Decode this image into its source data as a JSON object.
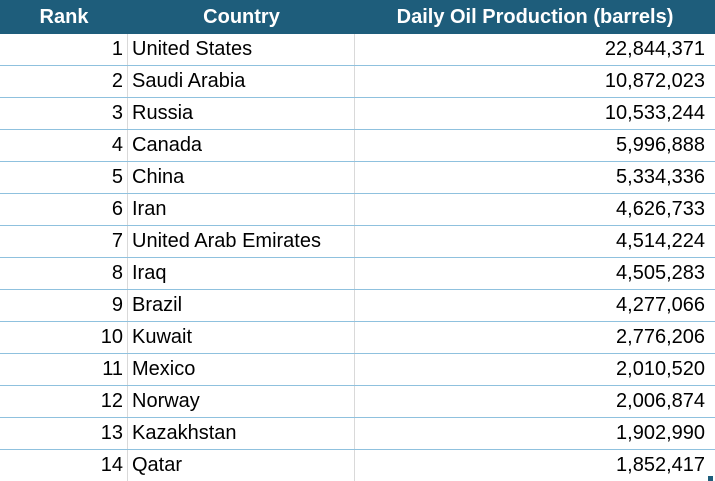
{
  "table": {
    "header": [
      "Rank",
      "Country",
      "Daily Oil Production (barrels)"
    ],
    "rows": [
      [
        1,
        "United States",
        "22,844,371"
      ],
      [
        2,
        "Saudi Arabia",
        "10,872,023"
      ],
      [
        3,
        "Russia",
        "10,533,244"
      ],
      [
        4,
        "Canada",
        "5,996,888"
      ],
      [
        5,
        "China",
        "5,334,336"
      ],
      [
        6,
        "Iran",
        "4,626,733"
      ],
      [
        7,
        "United Arab Emirates",
        "4,514,224"
      ],
      [
        8,
        "Iraq",
        "4,505,283"
      ],
      [
        9,
        "Brazil",
        "4,277,066"
      ],
      [
        10,
        "Kuwait",
        "2,776,206"
      ],
      [
        11,
        "Mexico",
        "2,010,520"
      ],
      [
        12,
        "Norway",
        "2,006,874"
      ],
      [
        13,
        "Kazakhstan",
        "1,902,990"
      ],
      [
        14,
        "Qatar",
        "1,852,417"
      ]
    ]
  }
}
